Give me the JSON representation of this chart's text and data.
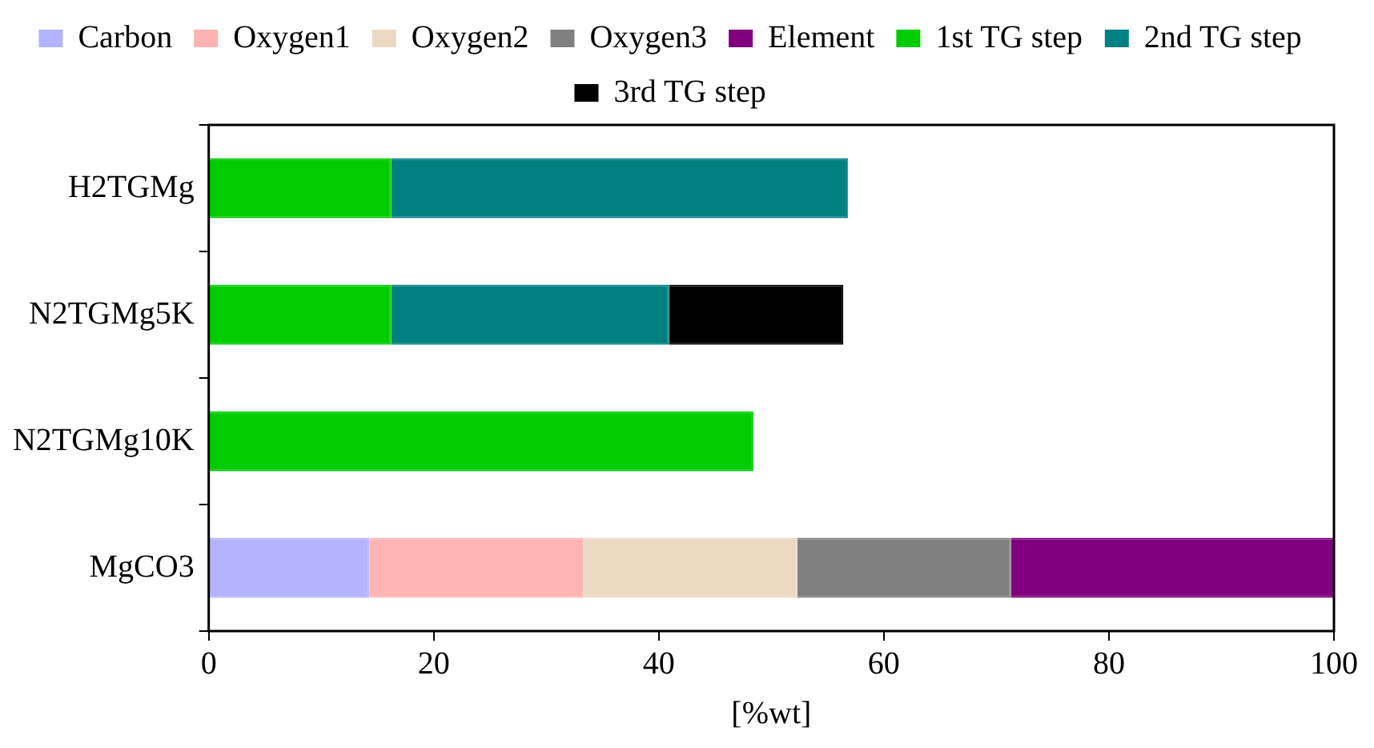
{
  "chart_data": {
    "type": "bar",
    "orientation": "horizontal",
    "stacked": true,
    "xlabel": "[%wt]",
    "categories": [
      "H2TGMg",
      "N2TGMg5K",
      "N2TGMg10K",
      "MgCO3"
    ],
    "series": [
      {
        "name": "Carbon",
        "color": "#b3b3ff",
        "values": [
          null,
          null,
          null,
          14.3
        ]
      },
      {
        "name": "Oxygen1",
        "color": "#ffb3b3",
        "values": [
          null,
          null,
          null,
          19.0
        ]
      },
      {
        "name": "Oxygen2",
        "color": "#ebd9c4",
        "values": [
          null,
          null,
          null,
          19.0
        ]
      },
      {
        "name": "Oxygen3",
        "color": "#808080",
        "values": [
          null,
          null,
          null,
          19.0
        ]
      },
      {
        "name": "Element",
        "color": "#800080",
        "values": [
          null,
          null,
          null,
          28.7
        ]
      },
      {
        "name": "1st TG step",
        "color": "#00cc00",
        "values": [
          16.2,
          16.2,
          48.4,
          null
        ]
      },
      {
        "name": "2nd TG step",
        "color": "#008080",
        "values": [
          40.6,
          24.7,
          null,
          null
        ]
      },
      {
        "name": "3rd TG step",
        "color": "#000000",
        "values": [
          null,
          15.5,
          null,
          null
        ]
      }
    ],
    "xlim": [
      0,
      100
    ],
    "xticks": [
      0,
      20,
      40,
      60,
      80,
      100
    ],
    "grid": false,
    "legend": "top"
  }
}
